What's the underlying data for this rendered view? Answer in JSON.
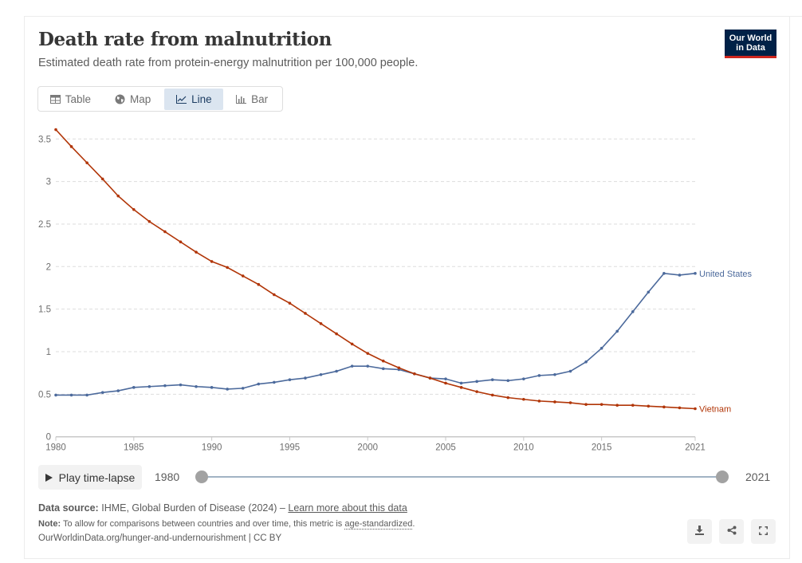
{
  "header": {
    "title": "Death rate from malnutrition",
    "subtitle": "Estimated death rate from protein-energy malnutrition per 100,000 people.",
    "logo_line1": "Our World",
    "logo_line2": "in Data"
  },
  "tabs": [
    {
      "label": "Table",
      "icon": "table-icon",
      "active": false
    },
    {
      "label": "Map",
      "icon": "globe-icon",
      "active": false
    },
    {
      "label": "Line",
      "icon": "line-chart-icon",
      "active": true
    },
    {
      "label": "Bar",
      "icon": "bar-chart-icon",
      "active": false
    }
  ],
  "timeline": {
    "play_label": "Play time-lapse",
    "start_year": "1980",
    "end_year": "2021"
  },
  "footer": {
    "source_label": "Data source:",
    "source_text": "IHME, Global Burden of Disease (2024) – ",
    "source_link": "Learn more about this data",
    "note_label": "Note:",
    "note_text": "To allow for comparisons between countries and over time, this metric is ",
    "note_link": "age-standardized",
    "note_end": ".",
    "url_text": "OurWorldinData.org/hunger-and-undernourishment | CC BY",
    "actions": [
      "download-icon",
      "share-icon",
      "fullscreen-icon"
    ]
  },
  "chart_data": {
    "type": "line",
    "title": "Death rate from malnutrition",
    "subtitle": "Estimated death rate from protein-energy malnutrition per 100,000 people.",
    "xlabel": "",
    "ylabel": "",
    "x": [
      1980,
      1981,
      1982,
      1983,
      1984,
      1985,
      1986,
      1987,
      1988,
      1989,
      1990,
      1991,
      1992,
      1993,
      1994,
      1995,
      1996,
      1997,
      1998,
      1999,
      2000,
      2001,
      2002,
      2003,
      2004,
      2005,
      2006,
      2007,
      2008,
      2009,
      2010,
      2011,
      2012,
      2013,
      2014,
      2015,
      2016,
      2017,
      2018,
      2019,
      2020,
      2021
    ],
    "xlim": [
      1980,
      2021
    ],
    "ylim": [
      0,
      3.6
    ],
    "x_ticks": [
      "1980",
      "1985",
      "1990",
      "1995",
      "2000",
      "2005",
      "2010",
      "2015",
      "2021"
    ],
    "y_ticks": [
      "0",
      "0.5",
      "1",
      "1.5",
      "2",
      "2.5",
      "3",
      "3.5"
    ],
    "grid": "horizontal dashed",
    "legend": "inline labels at line ends (right)",
    "series": [
      {
        "name": "United States",
        "color": "#4c6a9c",
        "values": [
          0.49,
          0.49,
          0.49,
          0.52,
          0.54,
          0.58,
          0.59,
          0.6,
          0.61,
          0.59,
          0.58,
          0.56,
          0.57,
          0.62,
          0.64,
          0.67,
          0.69,
          0.73,
          0.77,
          0.83,
          0.83,
          0.8,
          0.79,
          0.74,
          0.69,
          0.68,
          0.63,
          0.65,
          0.67,
          0.66,
          0.68,
          0.72,
          0.73,
          0.77,
          0.88,
          1.04,
          1.24,
          1.47,
          1.7,
          1.92,
          1.9,
          1.92
        ]
      },
      {
        "name": "Vietnam",
        "color": "#b13507",
        "values": [
          3.61,
          3.41,
          3.22,
          3.03,
          2.83,
          2.67,
          2.53,
          2.41,
          2.29,
          2.17,
          2.06,
          1.99,
          1.89,
          1.79,
          1.67,
          1.57,
          1.45,
          1.33,
          1.21,
          1.09,
          0.98,
          0.89,
          0.81,
          0.74,
          0.69,
          0.63,
          0.58,
          0.53,
          0.49,
          0.46,
          0.44,
          0.42,
          0.41,
          0.4,
          0.38,
          0.38,
          0.37,
          0.37,
          0.36,
          0.35,
          0.34,
          0.33
        ]
      }
    ]
  }
}
